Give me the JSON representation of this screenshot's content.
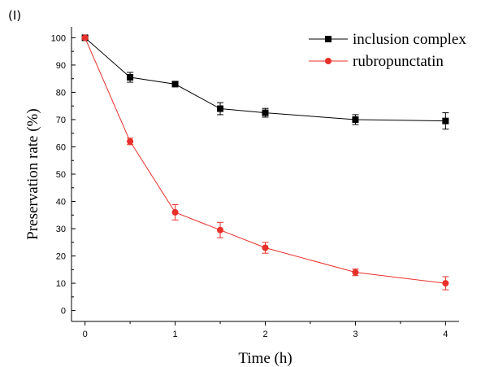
{
  "panel_label": "(I)",
  "chart_data": {
    "type": "line",
    "title": "",
    "xlabel": "Time (h)",
    "ylabel": "Preservation rate (%)",
    "x": [
      0,
      0.5,
      1,
      1.5,
      2,
      3,
      4
    ],
    "xticks": [
      "0",
      "1",
      "2",
      "3",
      "4"
    ],
    "yticks": [
      "0",
      "10",
      "20",
      "30",
      "40",
      "50",
      "60",
      "70",
      "80",
      "90",
      "100"
    ],
    "xlim": [
      -0.15,
      4.15
    ],
    "ylim": [
      -4,
      104
    ],
    "grid": false,
    "legend_position": "top-right",
    "series": [
      {
        "name": "inclusion complex",
        "color": "#000000",
        "marker": "square",
        "values": [
          100,
          85.5,
          83,
          74,
          72.5,
          70,
          69.5
        ],
        "errors": [
          0.5,
          1.8,
          0.8,
          2.2,
          1.6,
          1.8,
          3
        ]
      },
      {
        "name": "rubropunctatin",
        "color": "#e8302a",
        "marker": "circle",
        "values": [
          100,
          62,
          36,
          29.5,
          23,
          14,
          10
        ],
        "errors": [
          0.5,
          1.2,
          2.8,
          2.8,
          2,
          1.2,
          2.4
        ]
      }
    ]
  }
}
